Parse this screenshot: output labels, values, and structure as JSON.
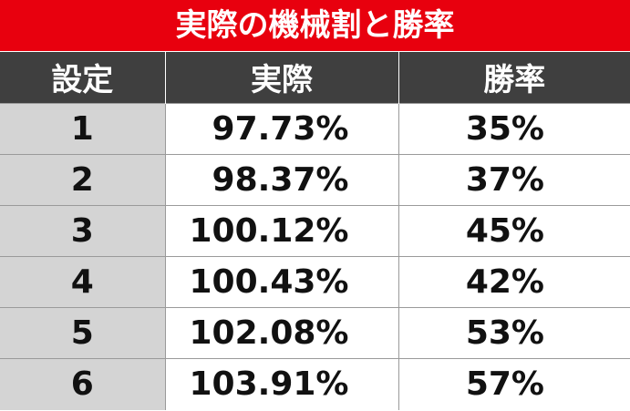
{
  "header": {
    "title": "実際の機械割と勝率"
  },
  "table": {
    "columns": [
      "設定",
      "実際",
      "勝率"
    ],
    "rows": [
      [
        "1",
        "97.73%",
        "35%"
      ],
      [
        "2",
        "98.37%",
        "37%"
      ],
      [
        "3",
        "100.12%",
        "45%"
      ],
      [
        "4",
        "100.43%",
        "42%"
      ],
      [
        "5",
        "102.08%",
        "53%"
      ],
      [
        "6",
        "103.91%",
        "57%"
      ]
    ]
  }
}
